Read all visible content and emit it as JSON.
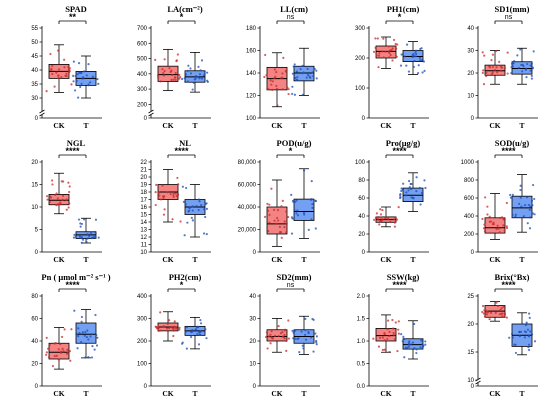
{
  "chart_data": [
    {
      "type": "box",
      "title": "SPAD",
      "ylim": [
        0,
        55
      ],
      "yticks": [
        0,
        30,
        35,
        40,
        45,
        50,
        55
      ],
      "axis_break": [
        0,
        25
      ],
      "categories": [
        "CK",
        "T"
      ],
      "sig": "**",
      "series": [
        {
          "name": "CK",
          "color": "#f26d6d",
          "q1": 37,
          "median": 39.5,
          "q3": 42,
          "min": 32,
          "max": 49
        },
        {
          "name": "T",
          "color": "#5b8ff0",
          "q1": 34.5,
          "median": 37,
          "q3": 39.5,
          "min": 30,
          "max": 45
        }
      ]
    },
    {
      "type": "box",
      "title": "LA(cm⁻²)",
      "ylim": [
        0,
        700
      ],
      "yticks": [
        0,
        200,
        300,
        400,
        500,
        600,
        700
      ],
      "axis_break": [
        0,
        150
      ],
      "categories": [
        "CK",
        "T"
      ],
      "sig": "*",
      "series": [
        {
          "name": "CK",
          "color": "#f26d6d",
          "q1": 350,
          "median": 395,
          "q3": 450,
          "min": 290,
          "max": 560
        },
        {
          "name": "T",
          "color": "#5b8ff0",
          "q1": 345,
          "median": 380,
          "q3": 420,
          "min": 280,
          "max": 540
        }
      ]
    },
    {
      "type": "box",
      "title": "LL(cm)",
      "ylim": [
        100,
        180
      ],
      "yticks": [
        100,
        120,
        140,
        160,
        180
      ],
      "categories": [
        "CK",
        "T"
      ],
      "sig": "ns",
      "series": [
        {
          "name": "CK",
          "color": "#f26d6d",
          "q1": 125,
          "median": 135,
          "q3": 145,
          "min": 110,
          "max": 158
        },
        {
          "name": "T",
          "color": "#5b8ff0",
          "q1": 133,
          "median": 140,
          "q3": 146,
          "min": 120,
          "max": 162
        }
      ]
    },
    {
      "type": "box",
      "title": "PH1(cm)",
      "ylim": [
        0,
        300
      ],
      "yticks": [
        0,
        100,
        200,
        300
      ],
      "categories": [
        "CK",
        "T"
      ],
      "sig": "*",
      "series": [
        {
          "name": "CK",
          "color": "#f26d6d",
          "q1": 200,
          "median": 222,
          "q3": 240,
          "min": 165,
          "max": 270
        },
        {
          "name": "T",
          "color": "#5b8ff0",
          "q1": 188,
          "median": 205,
          "q3": 225,
          "min": 145,
          "max": 255
        }
      ]
    },
    {
      "type": "box",
      "title": "SD1(mm)",
      "ylim": [
        0,
        40
      ],
      "yticks": [
        0,
        10,
        20,
        30,
        40
      ],
      "categories": [
        "CK",
        "T"
      ],
      "sig": "ns",
      "series": [
        {
          "name": "CK",
          "color": "#f26d6d",
          "q1": 19,
          "median": 21,
          "q3": 23.5,
          "min": 15,
          "max": 30
        },
        {
          "name": "T",
          "color": "#5b8ff0",
          "q1": 19.5,
          "median": 22,
          "q3": 25,
          "min": 15,
          "max": 31
        }
      ]
    },
    {
      "type": "box",
      "title": "NGL",
      "ylim": [
        0,
        20
      ],
      "yticks": [
        0,
        5,
        10,
        15,
        20
      ],
      "categories": [
        "CK",
        "T"
      ],
      "sig": "****",
      "series": [
        {
          "name": "CK",
          "color": "#f26d6d",
          "q1": 10.5,
          "median": 11.5,
          "q3": 12.8,
          "min": 8.5,
          "max": 17.5
        },
        {
          "name": "T",
          "color": "#5b8ff0",
          "q1": 3,
          "median": 3.8,
          "q3": 4.5,
          "min": 2,
          "max": 7.5
        }
      ]
    },
    {
      "type": "box",
      "title": "NL",
      "ylim": [
        10,
        22
      ],
      "yticks": [
        10,
        11,
        12,
        13,
        14,
        15,
        16,
        17,
        18,
        19,
        20,
        21,
        22
      ],
      "categories": [
        "CK",
        "T"
      ],
      "sig": "****",
      "series": [
        {
          "name": "CK",
          "color": "#f26d6d",
          "q1": 17,
          "median": 18,
          "q3": 19,
          "min": 14,
          "max": 21
        },
        {
          "name": "T",
          "color": "#5b8ff0",
          "q1": 15,
          "median": 16,
          "q3": 17,
          "min": 12,
          "max": 19
        }
      ]
    },
    {
      "type": "box",
      "title": "POD(u/g)",
      "ylim": [
        0,
        80000
      ],
      "yticks": [
        0,
        20000,
        40000,
        60000,
        80000
      ],
      "tick_labels": [
        "0",
        "20,000",
        "40,000",
        "60,000",
        "80,000"
      ],
      "categories": [
        "CK",
        "T"
      ],
      "sig": "*",
      "series": [
        {
          "name": "CK",
          "color": "#f26d6d",
          "q1": 16000,
          "median": 25000,
          "q3": 40000,
          "min": 5000,
          "max": 64000
        },
        {
          "name": "T",
          "color": "#5b8ff0",
          "q1": 28000,
          "median": 36000,
          "q3": 47000,
          "min": 12000,
          "max": 74000
        }
      ]
    },
    {
      "type": "box",
      "title": "Pro(μg/g)",
      "ylim": [
        0,
        100
      ],
      "yticks": [
        0,
        20,
        40,
        60,
        80,
        100
      ],
      "categories": [
        "CK",
        "T"
      ],
      "sig": "****",
      "series": [
        {
          "name": "CK",
          "color": "#f26d6d",
          "q1": 33,
          "median": 36,
          "q3": 39,
          "min": 28,
          "max": 50
        },
        {
          "name": "T",
          "color": "#5b8ff0",
          "q1": 56,
          "median": 63,
          "q3": 71,
          "min": 45,
          "max": 88
        }
      ]
    },
    {
      "type": "box",
      "title": "SOD(u/g)",
      "ylim": [
        0,
        1000
      ],
      "yticks": [
        0,
        200,
        400,
        600,
        800,
        1000
      ],
      "categories": [
        "CK",
        "T"
      ],
      "sig": "****",
      "series": [
        {
          "name": "CK",
          "color": "#f26d6d",
          "q1": 210,
          "median": 270,
          "q3": 380,
          "min": 140,
          "max": 650
        },
        {
          "name": "T",
          "color": "#5b8ff0",
          "q1": 380,
          "median": 490,
          "q3": 620,
          "min": 220,
          "max": 860
        }
      ]
    },
    {
      "type": "box",
      "title": "Pn ( μmol m⁻² s⁻¹ )",
      "ylim": [
        0,
        80
      ],
      "yticks": [
        0,
        20,
        40,
        60,
        80
      ],
      "categories": [
        "CK",
        "T"
      ],
      "sig": "****",
      "series": [
        {
          "name": "CK",
          "color": "#f26d6d",
          "q1": 24,
          "median": 30,
          "q3": 38,
          "min": 15,
          "max": 52
        },
        {
          "name": "T",
          "color": "#5b8ff0",
          "q1": 38,
          "median": 46,
          "q3": 56,
          "min": 25,
          "max": 68
        }
      ]
    },
    {
      "type": "box",
      "title": "PH2(cm)",
      "ylim": [
        0,
        400
      ],
      "yticks": [
        0,
        100,
        200,
        300,
        400
      ],
      "categories": [
        "CK",
        "T"
      ],
      "sig": "*",
      "series": [
        {
          "name": "CK",
          "color": "#f26d6d",
          "q1": 245,
          "median": 262,
          "q3": 280,
          "min": 200,
          "max": 330
        },
        {
          "name": "T",
          "color": "#5b8ff0",
          "q1": 225,
          "median": 245,
          "q3": 265,
          "min": 165,
          "max": 305
        }
      ]
    },
    {
      "type": "box",
      "title": "SD2(mm)",
      "ylim": [
        0,
        40
      ],
      "yticks": [
        0,
        10,
        20,
        30,
        40
      ],
      "categories": [
        "CK",
        "T"
      ],
      "sig": "ns",
      "series": [
        {
          "name": "CK",
          "color": "#f26d6d",
          "q1": 20,
          "median": 22,
          "q3": 25,
          "min": 15,
          "max": 30
        },
        {
          "name": "T",
          "color": "#5b8ff0",
          "q1": 19,
          "median": 22,
          "q3": 25,
          "min": 14,
          "max": 31
        }
      ]
    },
    {
      "type": "box",
      "title": "SSW(kg)",
      "ylim": [
        0,
        2
      ],
      "yticks": [
        0,
        0.5,
        1,
        1.5,
        2
      ],
      "tick_labels": [
        "0.0",
        "0.5",
        "1.0",
        "1.5",
        "2.0"
      ],
      "categories": [
        "CK",
        "T"
      ],
      "sig": "****",
      "series": [
        {
          "name": "CK",
          "color": "#f26d6d",
          "q1": 1.0,
          "median": 1.12,
          "q3": 1.28,
          "min": 0.75,
          "max": 1.58
        },
        {
          "name": "T",
          "color": "#5b8ff0",
          "q1": 0.82,
          "median": 0.92,
          "q3": 1.05,
          "min": 0.6,
          "max": 1.45
        }
      ]
    },
    {
      "type": "box",
      "title": "Brix(°Bx)",
      "ylim": [
        0,
        25
      ],
      "yticks": [
        0,
        10,
        15,
        20,
        25
      ],
      "axis_break": [
        0,
        10
      ],
      "categories": [
        "CK",
        "T"
      ],
      "sig": "****",
      "series": [
        {
          "name": "CK",
          "color": "#f26d6d",
          "q1": 21.2,
          "median": 22.3,
          "q3": 23.3,
          "min": 20.5,
          "max": 24
        },
        {
          "name": "T",
          "color": "#5b8ff0",
          "q1": 16,
          "median": 18,
          "q3": 20,
          "min": 14.5,
          "max": 22
        }
      ]
    }
  ]
}
